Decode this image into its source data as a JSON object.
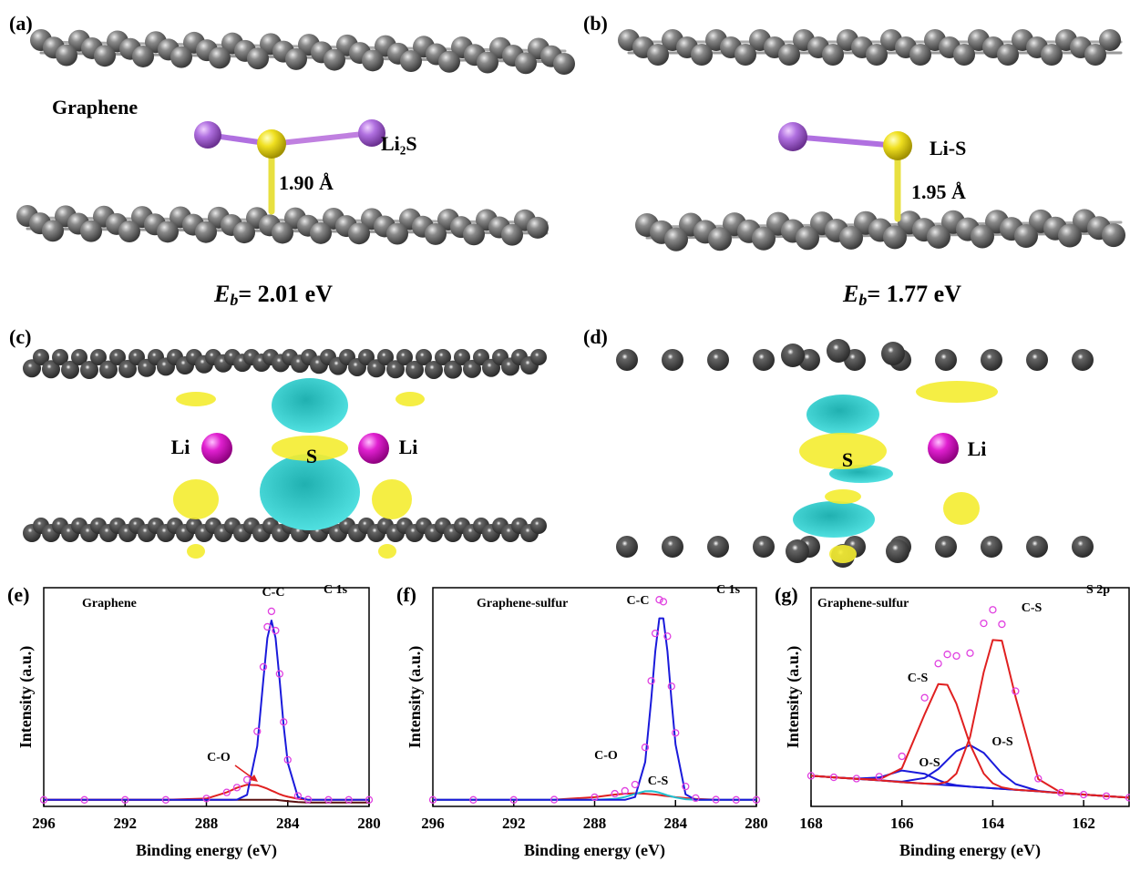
{
  "panels": [
    {
      "label": "(a)",
      "texts": [
        "Graphene",
        "Li₂S",
        "1.90 Å"
      ],
      "energy": {
        "symbol": "E",
        "subscript": "b",
        "rest": "= 2.01 eV"
      }
    },
    {
      "label": "(b)",
      "texts": [
        "Li-S",
        "1.95 Å"
      ],
      "energy": {
        "symbol": "E",
        "subscript": "b",
        "rest": "= 1.77 eV"
      }
    },
    {
      "label": "(c)",
      "texts": [
        "Li",
        "S",
        "Li"
      ]
    },
    {
      "label": "(d)",
      "texts": [
        "S",
        "Li"
      ]
    }
  ],
  "chart_data": [
    {
      "type": "line",
      "label": "(e)",
      "annotations": [
        "Graphene",
        "C 1s",
        "C-C",
        "C-O"
      ],
      "xlabel": "Binding energy (eV)",
      "ylabel": "Intensity (a.u.)",
      "x": [
        296,
        294,
        292,
        290,
        288,
        287,
        286.5,
        286,
        285.5,
        285.2,
        285,
        284.8,
        284.6,
        284.4,
        284.2,
        284,
        283.5,
        283,
        282,
        281,
        280
      ],
      "xlim": [
        296,
        280
      ],
      "xticks": [
        296,
        292,
        288,
        284,
        280
      ],
      "ylim": [
        0,
        100
      ],
      "series": [
        {
          "color": "#5a1010",
          "style": "line",
          "values": [
            3,
            3,
            3,
            3,
            3,
            3,
            3,
            3,
            3,
            3,
            3,
            3,
            3,
            2.8,
            2.6,
            2.4,
            2,
            1.8,
            1.8,
            1.8,
            1.8
          ]
        },
        {
          "color": "#e02020",
          "style": "line",
          "values": [
            3,
            3,
            3,
            3,
            3.6,
            6.4,
            8.5,
            9.9,
            9.7,
            8.8,
            8.1,
            7.2,
            6.4,
            5.6,
            4.9,
            4.4,
            3.5,
            3.1,
            3,
            3,
            3
          ]
        },
        {
          "color": "#1a1adb",
          "style": "line",
          "values": [
            3,
            3,
            3,
            3,
            3,
            3,
            3.1,
            5.3,
            27.6,
            58,
            77,
            85,
            77,
            58,
            36.7,
            19.9,
            4.3,
            3,
            3,
            3,
            3
          ]
        },
        {
          "color": "#e040e0",
          "style": "markers",
          "values": [
            3,
            3,
            3,
            3,
            3.6,
            6.4,
            8.6,
            12.2,
            34.3,
            63.8,
            82.1,
            89.2,
            80.4,
            60.6,
            38.6,
            21.3,
            4.8,
            3.1,
            3,
            3,
            3
          ]
        }
      ]
    },
    {
      "type": "line",
      "label": "(f)",
      "annotations": [
        "Graphene-sulfur",
        "C 1s",
        "C-C",
        "C-O",
        "C-S"
      ],
      "xlabel": "Binding energy (eV)",
      "ylabel": "Intensity (a.u.)",
      "x": [
        296,
        294,
        292,
        290,
        288,
        287,
        286.5,
        286,
        285.5,
        285.2,
        285,
        284.8,
        284.6,
        284.4,
        284.2,
        284,
        283.5,
        283,
        282,
        281,
        280
      ],
      "xlim": [
        296,
        280
      ],
      "xticks": [
        296,
        292,
        288,
        284,
        280
      ],
      "ylim": [
        0,
        100
      ],
      "series": [
        {
          "color": "#e02020",
          "style": "line",
          "values": [
            3,
            3,
            3,
            3.1,
            4.2,
            5.4,
            5.8,
            6,
            5.8,
            5.6,
            5.4,
            5.2,
            4.9,
            4.7,
            4.5,
            4.2,
            3.8,
            3.4,
            3.1,
            3,
            3
          ]
        },
        {
          "color": "#20c0d0",
          "style": "line",
          "values": [
            3,
            3,
            3,
            3,
            3,
            3.4,
            4.3,
            5.7,
            6.9,
            7,
            6.7,
            6.3,
            5.7,
            5.1,
            4.6,
            4.1,
            3.3,
            3,
            3,
            3,
            3
          ]
        },
        {
          "color": "#1a1adb",
          "style": "line",
          "values": [
            3,
            3,
            3,
            3,
            3,
            3,
            3,
            4.3,
            20.3,
            48.8,
            71,
            86,
            86,
            71,
            48.8,
            28.3,
            5.5,
            3,
            3,
            3,
            3
          ]
        },
        {
          "color": "#e040e0",
          "style": "markers",
          "values": [
            3,
            3,
            3,
            3.1,
            4.2,
            5.8,
            7.1,
            10,
            27,
            57.4,
            79.1,
            94.5,
            93.6,
            77.8,
            54.9,
            33.6,
            9.1,
            3.8,
            3.1,
            3,
            3
          ]
        }
      ]
    },
    {
      "type": "line",
      "label": "(g)",
      "annotations": [
        "Graphene-sulfur",
        "S 2p",
        "C-S",
        "C-S",
        "O-S",
        "O-S"
      ],
      "xlabel": "Binding energy (eV)",
      "ylabel": "Intensity (a.u.)",
      "x": [
        168,
        167.5,
        167,
        166.5,
        166,
        165.5,
        165.2,
        165,
        164.8,
        164.5,
        164.2,
        164,
        163.8,
        163.5,
        163,
        162.5,
        162,
        161.5,
        161
      ],
      "xlim": [
        168,
        161
      ],
      "xticks": [
        168,
        166,
        164,
        162
      ],
      "ylim": [
        0,
        100
      ],
      "series": [
        {
          "color": "#1a1adb",
          "style": "line",
          "values": [
            14,
            13.3,
            12.6,
            11.9,
            11.1,
            10.4,
            10,
            9.7,
            9.4,
            9,
            8.6,
            8.3,
            8,
            7.6,
            6.9,
            6.1,
            5.4,
            4.7,
            4
          ]
        },
        {
          "color": "#1a1adb",
          "style": "line",
          "values": [
            14,
            13.3,
            12.7,
            13.2,
            16.4,
            14.9,
            12,
            10.5,
            9.7,
            9,
            8.6,
            8.3,
            8,
            7.6,
            6.9,
            6.1,
            5.4,
            4.7,
            4
          ]
        },
        {
          "color": "#1a1adb",
          "style": "line",
          "values": [
            14,
            13.3,
            12.6,
            11.9,
            11.3,
            13,
            17.1,
            21.2,
            25.3,
            28,
            24.5,
            19.8,
            15.1,
            10.2,
            7.1,
            6.1,
            5.4,
            4.7,
            4
          ]
        },
        {
          "color": "#e02020",
          "style": "line",
          "values": [
            14,
            13.3,
            12.6,
            12.3,
            17.4,
            42.1,
            55.9,
            55.6,
            47,
            28.3,
            15,
            10.6,
            8.7,
            7.6,
            6.9,
            6.1,
            5.4,
            4.7,
            4
          ]
        },
        {
          "color": "#e02020",
          "style": "line",
          "values": [
            14,
            13.3,
            12.6,
            11.9,
            11.1,
            10.4,
            10.3,
            11.3,
            15,
            31.8,
            61.4,
            76.1,
            75.8,
            50.1,
            12.5,
            6.3,
            5.4,
            4.7,
            4
          ]
        },
        {
          "color": "#e040e0",
          "style": "markers",
          "values": [
            14,
            13.3,
            12.7,
            13.6,
            22.9,
            49.7,
            65.3,
            69.5,
            68.8,
            70.1,
            83.7,
            89.9,
            83.3,
            52.7,
            12.7,
            6.3,
            5.4,
            4.7,
            4
          ]
        }
      ]
    }
  ]
}
